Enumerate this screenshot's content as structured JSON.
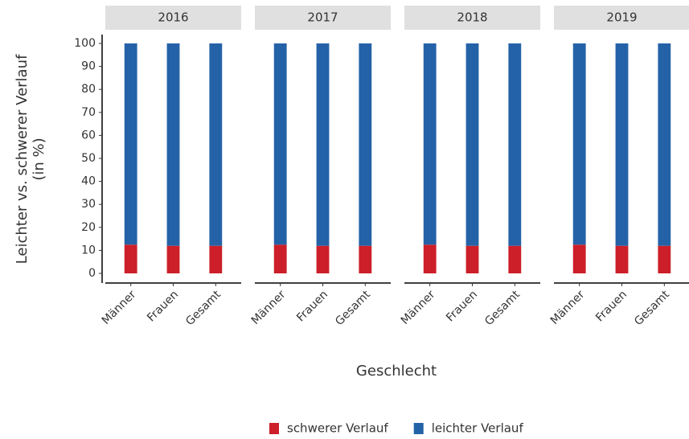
{
  "chart_data": {
    "type": "bar",
    "stacked": true,
    "xlabel": "Geschlecht",
    "ylabel": [
      "Leichter vs. schwerer Verlauf",
      "(in %)"
    ],
    "facets": [
      "2016",
      "2017",
      "2018",
      "2019"
    ],
    "categories": [
      "Männer",
      "Frauen",
      "Gesamt"
    ],
    "series": [
      {
        "name": "schwerer Verlauf",
        "color": "#cc1f2a",
        "values": [
          [
            12.5,
            12,
            12
          ],
          [
            12.5,
            12,
            12
          ],
          [
            12.5,
            12,
            12
          ],
          [
            12.5,
            12,
            12
          ]
        ]
      },
      {
        "name": "leichter Verlauf",
        "color": "#2462a8",
        "values": [
          [
            87.5,
            88,
            88
          ],
          [
            87.5,
            88,
            88
          ],
          [
            87.5,
            88,
            88
          ],
          [
            87.5,
            88,
            88
          ]
        ]
      }
    ],
    "ylim": [
      0,
      100
    ],
    "yticks": [
      0,
      10,
      20,
      30,
      40,
      50,
      60,
      70,
      80,
      90,
      100
    ],
    "legend": "bottom"
  }
}
